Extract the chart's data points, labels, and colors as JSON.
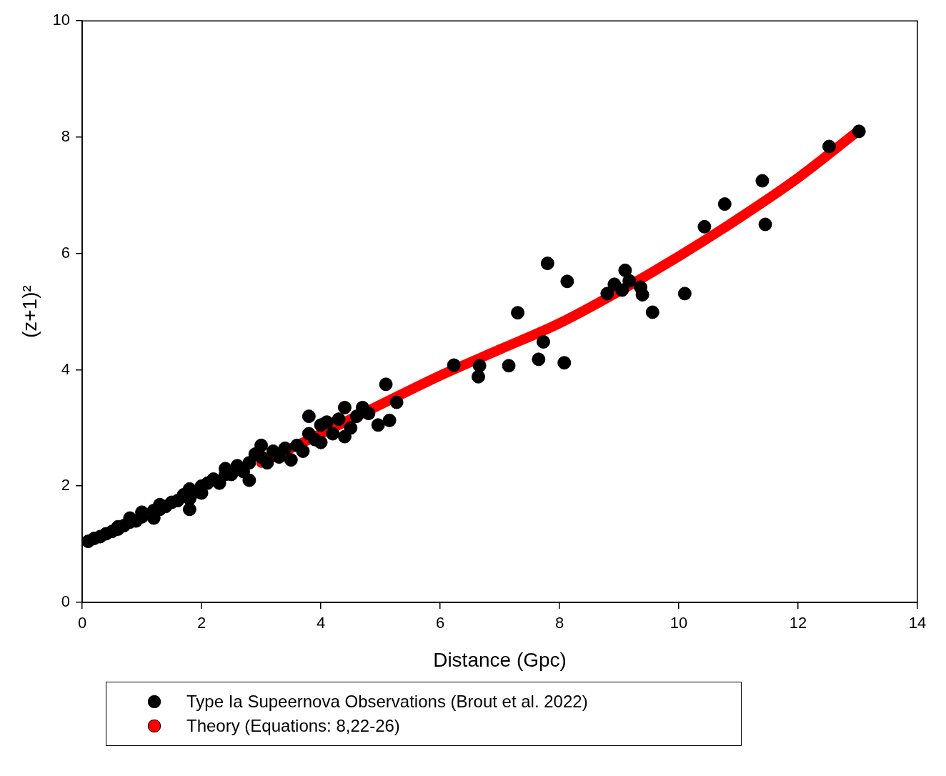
{
  "chart_data": {
    "type": "scatter",
    "xlabel": "Distance (Gpc)",
    "ylabel": "(z+1)²",
    "xlim": [
      0,
      14
    ],
    "ylim": [
      0,
      10
    ],
    "xticks": [
      0,
      2,
      4,
      6,
      8,
      10,
      12,
      14
    ],
    "yticks": [
      0,
      2,
      4,
      6,
      8,
      10
    ],
    "grid": false,
    "legend": "bottom",
    "series": [
      {
        "name": "Theory (Equations: 8,22-26)",
        "type": "line",
        "marker": "none",
        "color": "#ff0000",
        "x": [
          3,
          4,
          5,
          6,
          7,
          8,
          9,
          10,
          11,
          12,
          13
        ],
        "values": [
          2.4,
          2.9,
          3.4,
          3.9,
          4.35,
          4.8,
          5.35,
          5.95,
          6.6,
          7.3,
          8.1
        ]
      },
      {
        "name": "Type Ia Supeernova Observations (Brout et al. 2022)",
        "marker": "circle",
        "color": "#000000",
        "x": [
          0.1,
          0.2,
          0.3,
          0.4,
          0.5,
          0.6,
          0.6,
          0.7,
          0.8,
          0.8,
          0.9,
          1.0,
          1.0,
          1.2,
          1.2,
          1.3,
          1.3,
          1.4,
          1.5,
          1.6,
          1.7,
          1.8,
          1.8,
          1.8,
          1.9,
          2.0,
          2.0,
          2.1,
          2.2,
          2.3,
          2.4,
          2.4,
          2.5,
          2.6,
          2.7,
          2.8,
          2.8,
          2.9,
          3.0,
          3.0,
          3.1,
          3.2,
          3.3,
          3.4,
          3.5,
          3.6,
          3.7,
          3.8,
          3.8,
          3.9,
          4.0,
          4.0,
          4.1,
          4.2,
          4.3,
          4.4,
          4.4,
          4.5,
          4.6,
          4.7,
          4.8,
          4.96,
          5.09,
          5.15,
          5.27,
          6.23,
          6.64,
          6.66,
          7.15,
          7.3,
          7.65,
          7.73,
          7.8,
          8.08,
          8.13,
          8.8,
          8.92,
          9.05,
          9.1,
          9.17,
          9.36,
          9.39,
          9.56,
          10.1,
          10.43,
          10.77,
          11.4,
          11.45,
          12.52,
          13.02
        ],
        "values": [
          1.05,
          1.1,
          1.13,
          1.18,
          1.22,
          1.26,
          1.3,
          1.32,
          1.38,
          1.45,
          1.4,
          1.47,
          1.55,
          1.58,
          1.45,
          1.6,
          1.68,
          1.65,
          1.72,
          1.75,
          1.85,
          1.78,
          1.95,
          1.6,
          1.9,
          2.0,
          1.88,
          2.05,
          2.12,
          2.05,
          2.3,
          2.2,
          2.2,
          2.35,
          2.25,
          2.4,
          2.1,
          2.55,
          2.5,
          2.7,
          2.4,
          2.6,
          2.5,
          2.65,
          2.45,
          2.7,
          2.6,
          2.9,
          3.2,
          2.8,
          3.05,
          2.75,
          3.1,
          2.9,
          3.15,
          3.35,
          2.85,
          3.0,
          3.2,
          3.35,
          3.25,
          3.05,
          3.75,
          3.13,
          3.44,
          4.08,
          3.88,
          4.07,
          4.07,
          4.98,
          4.18,
          4.48,
          5.83,
          4.12,
          5.52,
          5.31,
          5.47,
          5.37,
          5.71,
          5.53,
          5.42,
          5.29,
          4.99,
          5.31,
          6.46,
          6.85,
          7.25,
          6.5,
          7.84,
          8.1
        ]
      }
    ]
  }
}
